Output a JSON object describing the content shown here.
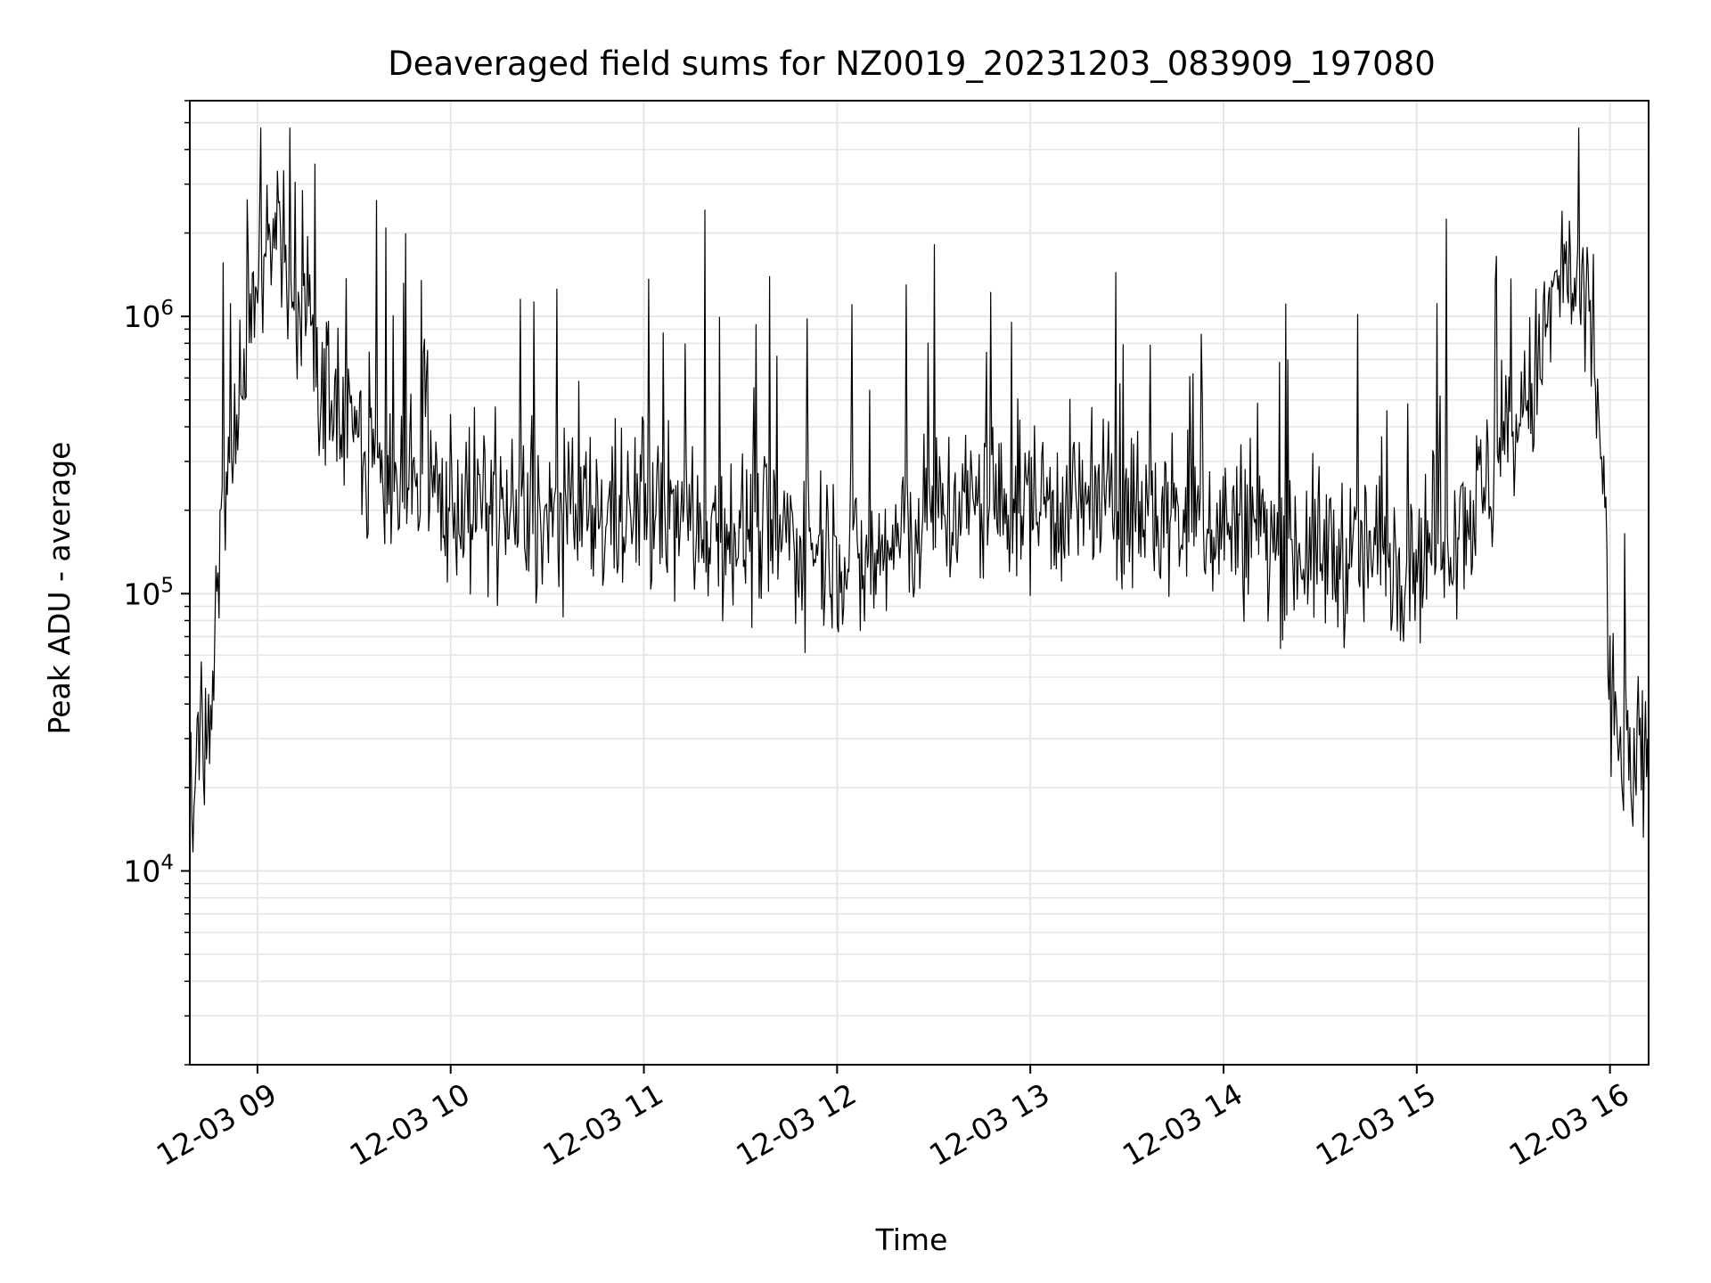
{
  "chart_data": {
    "type": "line",
    "title": "Deaveraged field sums for NZ0019_20231203_083909_197080",
    "xlabel": "Time",
    "ylabel": "Peak ADU - average",
    "yscale": "log",
    "ylim": [
      2000,
      6000000
    ],
    "xlim": [
      "2023-12-03 08:39",
      "2023-12-03 16:12"
    ],
    "xticks": [
      {
        "value": "2023-12-03 09:00",
        "label": "12-03 09"
      },
      {
        "value": "2023-12-03 10:00",
        "label": "12-03 10"
      },
      {
        "value": "2023-12-03 11:00",
        "label": "12-03 11"
      },
      {
        "value": "2023-12-03 12:00",
        "label": "12-03 12"
      },
      {
        "value": "2023-12-03 13:00",
        "label": "12-03 13"
      },
      {
        "value": "2023-12-03 14:00",
        "label": "12-03 14"
      },
      {
        "value": "2023-12-03 15:00",
        "label": "12-03 15"
      },
      {
        "value": "2023-12-03 16:00",
        "label": "12-03 16"
      }
    ],
    "yticks": [
      {
        "value": 10000,
        "label": "10^4"
      },
      {
        "value": 100000,
        "label": "10^5"
      },
      {
        "value": 1000000,
        "label": "10^6"
      }
    ],
    "grid": true,
    "line_color": "#000000",
    "grid_color": "#e6e6e6",
    "series": [
      {
        "x": [
          "2023-12-03 08:39",
          "2023-12-03 08:43",
          "2023-12-03 08:46",
          "2023-12-03 08:50",
          "2023-12-03 08:54",
          "2023-12-03 08:57",
          "2023-12-03 09:00",
          "2023-12-03 09:05",
          "2023-12-03 09:10",
          "2023-12-03 09:15",
          "2023-12-03 09:20",
          "2023-12-03 09:30",
          "2023-12-03 09:45",
          "2023-12-03 10:00",
          "2023-12-03 10:30",
          "2023-12-03 11:00",
          "2023-12-03 11:30",
          "2023-12-03 12:00",
          "2023-12-03 12:08",
          "2023-12-03 12:30",
          "2023-12-03 13:00",
          "2023-12-03 13:30",
          "2023-12-03 14:00",
          "2023-12-03 14:30",
          "2023-12-03 15:00",
          "2023-12-03 15:20",
          "2023-12-03 15:35",
          "2023-12-03 15:45",
          "2023-12-03 15:53",
          "2023-12-03 15:58",
          "2023-12-03 16:00",
          "2023-12-03 16:05",
          "2023-12-03 16:12"
        ],
        "y": [
          20000,
          30000,
          40000,
          250000,
          400000,
          1000000,
          1300000,
          2000000,
          1500000,
          900000,
          600000,
          400000,
          250000,
          220000,
          180000,
          200000,
          170000,
          150000,
          120000,
          200000,
          220000,
          200000,
          180000,
          140000,
          140000,
          220000,
          500000,
          1500000,
          1000000,
          300000,
          40000,
          25000,
          22000
        ]
      }
    ]
  }
}
